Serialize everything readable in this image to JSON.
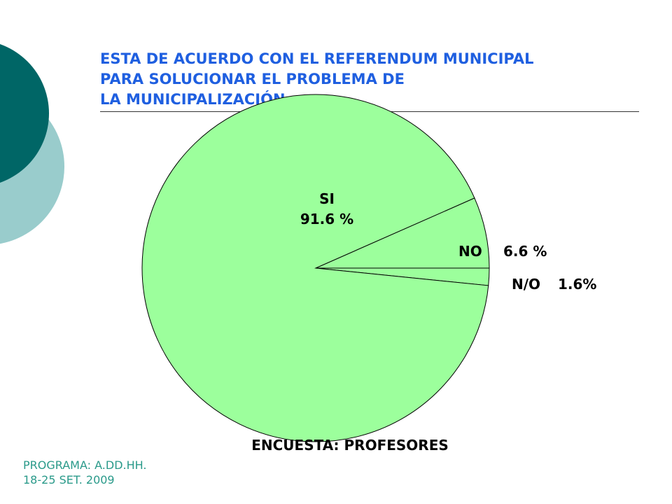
{
  "slide": {
    "title_lines": [
      "ESTA DE ACUERDO CON EL REFERENDUM MUNICIPAL",
      "PARA SOLUCIONAR EL  PROBLEMA DE",
      "LA MUNICIPALIZACIÓN"
    ],
    "caption": "ENCUESTA: PROFESORES",
    "footer_lines": [
      "PROGRAMA: A.DD.HH.",
      "18-25 SET. 2009"
    ]
  },
  "colors": {
    "title": "#1f5fe0",
    "slice_fill": "#9cff9c",
    "slice_stroke": "#000000",
    "decor_dark": "#006666",
    "decor_light": "#99cccc",
    "footer": "#2a9a8a"
  },
  "chart_data": {
    "type": "pie",
    "categories": [
      "SI",
      "NO",
      "N/O"
    ],
    "values": [
      91.6,
      6.6,
      1.6
    ],
    "value_labels": [
      "91.6 %",
      "6.6 %",
      "1.6%"
    ],
    "labels": [
      "SI\n91.6 %",
      "NO   6.6 %",
      "N/O 1.6%"
    ],
    "legend": "none"
  }
}
